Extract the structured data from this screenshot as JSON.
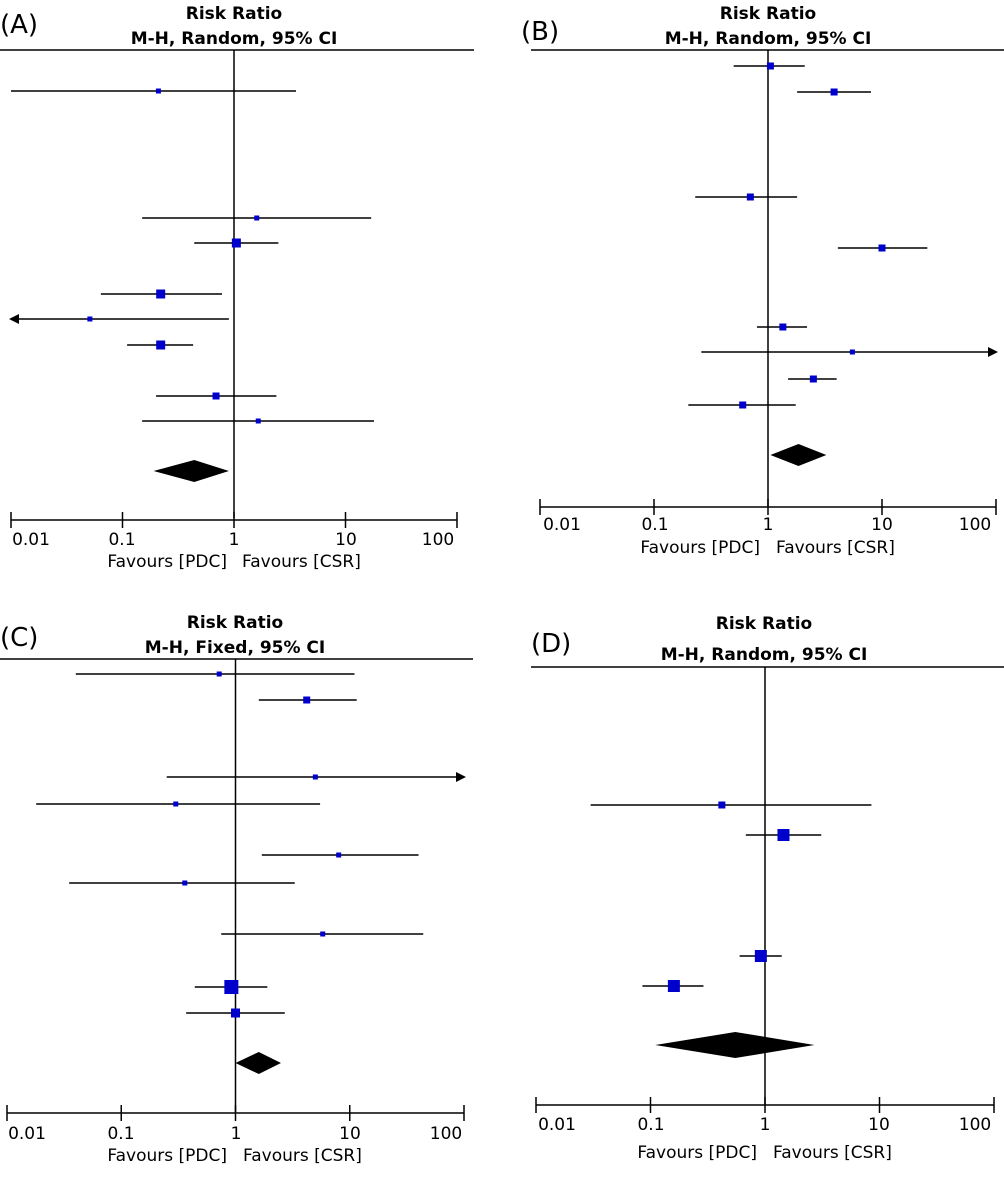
{
  "chart_data": [
    {
      "panel": "(A)",
      "type": "forest",
      "title": "Risk Ratio",
      "subtitle": "M-H, Random, 95% CI",
      "scale": "log",
      "xlim": [
        0.01,
        100
      ],
      "ticks": [
        "0.01",
        "0.1",
        "1",
        "10",
        "100"
      ],
      "tick_values": [
        0.01,
        0.1,
        1,
        10,
        100
      ],
      "favours_left": "Favours [PDC]",
      "favours_right": "Favours [CSR]",
      "studies": [
        {
          "rr": 0.21,
          "lo": 0.0095,
          "hi": 3.6,
          "weight": 2
        },
        {
          "rr": 1.6,
          "lo": 0.15,
          "hi": 17,
          "weight": 2
        },
        {
          "rr": 1.05,
          "lo": 0.44,
          "hi": 2.5,
          "weight": 4
        },
        {
          "rr": 0.22,
          "lo": 0.064,
          "hi": 0.78,
          "weight": 4
        },
        {
          "rr": 0.051,
          "lo": 0.0075,
          "hi": 0.9,
          "weight": 2,
          "arrow_left": true
        },
        {
          "rr": 0.22,
          "lo": 0.11,
          "hi": 0.43,
          "weight": 4
        },
        {
          "rr": 0.69,
          "lo": 0.2,
          "hi": 2.4,
          "weight": 3
        },
        {
          "rr": 1.65,
          "lo": 0.15,
          "hi": 18,
          "weight": 2
        }
      ],
      "pooled": {
        "rr": 0.44,
        "lo": 0.19,
        "hi": 0.9
      }
    },
    {
      "panel": "(B)",
      "type": "forest",
      "title": "Risk Ratio",
      "subtitle": "M-H, Random, 95% CI",
      "scale": "log",
      "xlim": [
        0.01,
        100
      ],
      "ticks": [
        "0.01",
        "0.1",
        "1",
        "10",
        "100"
      ],
      "tick_values": [
        0.01,
        0.1,
        1,
        10,
        100
      ],
      "favours_left": "Favours [PDC]",
      "favours_right": "Favours [CSR]",
      "studies": [
        {
          "rr": 1.05,
          "lo": 0.5,
          "hi": 2.1,
          "weight": 3
        },
        {
          "rr": 3.8,
          "lo": 1.8,
          "hi": 8,
          "weight": 3
        },
        {
          "rr": 0.7,
          "lo": 0.23,
          "hi": 1.8,
          "weight": 3
        },
        {
          "rr": 10,
          "lo": 4.1,
          "hi": 25,
          "weight": 3
        },
        {
          "rr": 1.35,
          "lo": 0.8,
          "hi": 2.2,
          "weight": 3
        },
        {
          "rr": 5.5,
          "lo": 0.26,
          "hi": 100,
          "weight": 2,
          "arrow_right": true
        },
        {
          "rr": 2.5,
          "lo": 1.5,
          "hi": 4,
          "weight": 3
        },
        {
          "rr": 0.6,
          "lo": 0.2,
          "hi": 1.75,
          "weight": 3
        }
      ],
      "pooled": {
        "rr": 1.85,
        "lo": 1.05,
        "hi": 3.25
      }
    },
    {
      "panel": "(C)",
      "type": "forest",
      "title": "Risk Ratio",
      "subtitle": "M-H, Fixed, 95% CI",
      "scale": "log",
      "xlim": [
        0.01,
        100
      ],
      "ticks": [
        "0.01",
        "0.1",
        "1",
        "10",
        "100"
      ],
      "tick_values": [
        0.01,
        0.1,
        1,
        10,
        100
      ],
      "favours_left": "Favours [PDC]",
      "favours_right": "Favours [CSR]",
      "studies": [
        {
          "rr": 0.72,
          "lo": 0.04,
          "hi": 11,
          "weight": 2
        },
        {
          "rr": 4.2,
          "lo": 1.6,
          "hi": 11.5,
          "weight": 3
        },
        {
          "rr": 5,
          "lo": 0.25,
          "hi": 100,
          "weight": 2,
          "arrow_right": true
        },
        {
          "rr": 0.3,
          "lo": 0.018,
          "hi": 5.5,
          "weight": 2
        },
        {
          "rr": 8,
          "lo": 1.7,
          "hi": 40,
          "weight": 2
        },
        {
          "rr": 0.36,
          "lo": 0.035,
          "hi": 3.3,
          "weight": 2
        },
        {
          "rr": 5.8,
          "lo": 0.75,
          "hi": 44,
          "weight": 2
        },
        {
          "rr": 0.92,
          "lo": 0.44,
          "hi": 1.9,
          "weight": 6
        },
        {
          "rr": 1.0,
          "lo": 0.37,
          "hi": 2.7,
          "weight": 4
        }
      ],
      "pooled": {
        "rr": 1.6,
        "lo": 1.0,
        "hi": 2.5
      }
    },
    {
      "panel": "(D)",
      "type": "forest",
      "title": "Risk Ratio",
      "subtitle": "M-H, Random, 95% CI",
      "scale": "log",
      "xlim": [
        0.01,
        100
      ],
      "ticks": [
        "0.01",
        "0.1",
        "1",
        "10",
        "100"
      ],
      "tick_values": [
        0.01,
        0.1,
        1,
        10,
        100
      ],
      "favours_left": "Favours [PDC]",
      "favours_right": "Favours [CSR]",
      "studies": [
        {
          "rr": 0.42,
          "lo": 0.03,
          "hi": 8.5,
          "weight": 3
        },
        {
          "rr": 1.45,
          "lo": 0.68,
          "hi": 3.1,
          "weight": 5
        },
        {
          "rr": 0.92,
          "lo": 0.6,
          "hi": 1.4,
          "weight": 5
        },
        {
          "rr": 0.16,
          "lo": 0.085,
          "hi": 0.29,
          "weight": 5
        }
      ],
      "pooled": {
        "rr": 0.55,
        "lo": 0.11,
        "hi": 2.7
      }
    }
  ]
}
